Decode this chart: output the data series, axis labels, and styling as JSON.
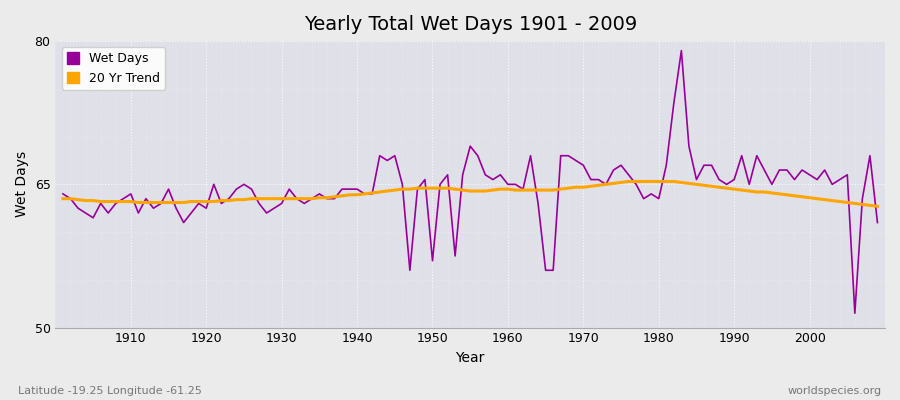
{
  "title": "Yearly Total Wet Days 1901 - 2009",
  "xlabel": "Year",
  "ylabel": "Wet Days",
  "subtitle": "Latitude -19.25 Longitude -61.25",
  "watermark": "worldspecies.org",
  "years": [
    1901,
    1902,
    1903,
    1904,
    1905,
    1906,
    1907,
    1908,
    1909,
    1910,
    1911,
    1912,
    1913,
    1914,
    1915,
    1916,
    1917,
    1918,
    1919,
    1920,
    1921,
    1922,
    1923,
    1924,
    1925,
    1926,
    1927,
    1928,
    1929,
    1930,
    1931,
    1932,
    1933,
    1934,
    1935,
    1936,
    1937,
    1938,
    1939,
    1940,
    1941,
    1942,
    1943,
    1944,
    1945,
    1946,
    1947,
    1948,
    1949,
    1950,
    1951,
    1952,
    1953,
    1954,
    1955,
    1956,
    1957,
    1958,
    1959,
    1960,
    1961,
    1962,
    1963,
    1964,
    1965,
    1966,
    1967,
    1968,
    1969,
    1970,
    1971,
    1972,
    1973,
    1974,
    1975,
    1976,
    1977,
    1978,
    1979,
    1980,
    1981,
    1982,
    1983,
    1984,
    1985,
    1986,
    1987,
    1988,
    1989,
    1990,
    1991,
    1992,
    1993,
    1994,
    1995,
    1996,
    1997,
    1998,
    1999,
    2000,
    2001,
    2002,
    2003,
    2004,
    2005,
    2006,
    2007,
    2008,
    2009
  ],
  "wet_days": [
    64.0,
    63.5,
    62.5,
    62.0,
    61.5,
    63.0,
    62.0,
    63.0,
    63.5,
    64.0,
    62.0,
    63.5,
    62.5,
    63.0,
    64.5,
    62.5,
    61.0,
    62.0,
    63.0,
    62.5,
    65.0,
    63.0,
    63.5,
    64.5,
    65.0,
    64.5,
    63.0,
    62.0,
    62.5,
    63.0,
    64.5,
    63.5,
    63.0,
    63.5,
    64.0,
    63.5,
    63.5,
    64.5,
    64.5,
    64.5,
    64.0,
    64.0,
    68.0,
    67.5,
    68.0,
    65.0,
    56.0,
    64.5,
    65.5,
    57.0,
    65.0,
    66.0,
    57.5,
    66.0,
    69.0,
    68.0,
    66.0,
    65.5,
    66.0,
    65.0,
    65.0,
    64.5,
    68.0,
    63.0,
    56.0,
    56.0,
    68.0,
    68.0,
    67.5,
    67.0,
    65.5,
    65.5,
    65.0,
    66.5,
    67.0,
    66.0,
    65.0,
    63.5,
    64.0,
    63.5,
    67.0,
    73.5,
    79.0,
    69.0,
    65.5,
    67.0,
    67.0,
    65.5,
    65.0,
    65.5,
    68.0,
    65.0,
    68.0,
    66.5,
    65.0,
    66.5,
    66.5,
    65.5,
    66.5,
    66.0,
    65.5,
    66.5,
    65.0,
    65.5,
    66.0,
    51.5,
    63.5,
    68.0,
    61.0
  ],
  "trend": [
    63.5,
    63.5,
    63.4,
    63.3,
    63.3,
    63.2,
    63.2,
    63.2,
    63.2,
    63.2,
    63.1,
    63.1,
    63.1,
    63.1,
    63.1,
    63.1,
    63.1,
    63.2,
    63.2,
    63.2,
    63.2,
    63.3,
    63.3,
    63.4,
    63.4,
    63.5,
    63.5,
    63.5,
    63.5,
    63.5,
    63.5,
    63.5,
    63.5,
    63.5,
    63.6,
    63.6,
    63.7,
    63.8,
    63.9,
    63.9,
    64.0,
    64.1,
    64.2,
    64.3,
    64.4,
    64.5,
    64.5,
    64.6,
    64.6,
    64.6,
    64.6,
    64.6,
    64.5,
    64.4,
    64.3,
    64.3,
    64.3,
    64.4,
    64.5,
    64.5,
    64.4,
    64.4,
    64.4,
    64.4,
    64.4,
    64.4,
    64.5,
    64.6,
    64.7,
    64.7,
    64.8,
    64.9,
    65.0,
    65.1,
    65.2,
    65.3,
    65.3,
    65.3,
    65.3,
    65.3,
    65.3,
    65.3,
    65.2,
    65.1,
    65.0,
    64.9,
    64.8,
    64.7,
    64.6,
    64.5,
    64.4,
    64.3,
    64.2,
    64.2,
    64.1,
    64.0,
    63.9,
    63.8,
    63.7,
    63.6,
    63.5,
    63.4,
    63.3,
    63.2,
    63.1,
    63.0,
    62.9,
    62.8,
    62.7
  ],
  "wet_days_color": "#990099",
  "trend_color": "#FFA500",
  "bg_color": "#ebebeb",
  "plot_bg_color": "#e0e0e8",
  "ylim": [
    50,
    80
  ],
  "yticks": [
    50,
    65,
    80
  ],
  "title_fontsize": 14,
  "axis_fontsize": 10,
  "tick_fontsize": 9,
  "legend_fontsize": 9
}
